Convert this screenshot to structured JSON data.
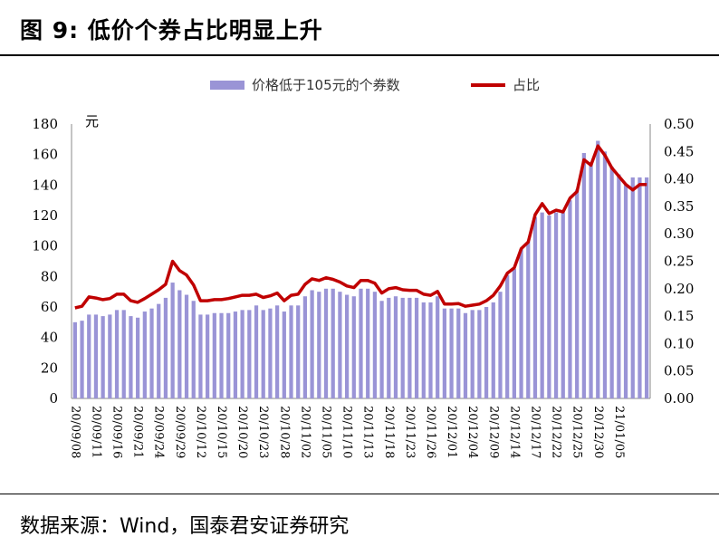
{
  "title": "图 9:  低价个券占比明显上升",
  "source": "数据来源：Wind，国泰君安证券研究",
  "colors": {
    "bar": "#9a94d6",
    "line": "#c00000"
  },
  "chart_data": {
    "type": "bar",
    "left_axis_unit": "元",
    "ylim_left": [
      0,
      180
    ],
    "yticks_left": [
      0,
      20,
      40,
      60,
      80,
      100,
      120,
      140,
      160,
      180
    ],
    "ylim_right": [
      0,
      0.5
    ],
    "yticks_right": [
      "0.00",
      "0.05",
      "0.10",
      "0.15",
      "0.20",
      "0.25",
      "0.30",
      "0.35",
      "0.40",
      "0.45",
      "0.50"
    ],
    "x_tick_labels": [
      "20/09/08",
      "20/09/11",
      "20/09/16",
      "20/09/21",
      "20/09/24",
      "20/09/29",
      "20/10/12",
      "20/10/15",
      "20/10/20",
      "20/10/23",
      "20/10/28",
      "20/11/02",
      "20/11/05",
      "20/11/10",
      "20/11/13",
      "20/11/18",
      "20/11/23",
      "20/11/26",
      "20/12/01",
      "20/12/04",
      "20/12/09",
      "20/12/14",
      "20/12/17",
      "20/12/22",
      "20/12/25",
      "20/12/30",
      "21/01/05"
    ],
    "x_tick_every": 3,
    "legend_position": "top",
    "series": [
      {
        "name": "价格低于105元的个券数",
        "type": "bar",
        "axis": "left",
        "values": [
          50,
          51,
          55,
          55,
          54,
          55,
          58,
          58,
          54,
          53,
          57,
          59,
          62,
          66,
          76,
          71,
          68,
          64,
          55,
          55,
          56,
          56,
          56,
          57,
          58,
          58,
          61,
          58,
          59,
          61,
          57,
          61,
          61,
          67,
          71,
          70,
          72,
          72,
          70,
          68,
          67,
          72,
          72,
          70,
          64,
          66,
          67,
          66,
          66,
          66,
          63,
          63,
          67,
          59,
          59,
          59,
          56,
          58,
          58,
          60,
          63,
          70,
          81,
          85,
          98,
          103,
          119,
          122,
          120,
          122,
          122,
          130,
          137,
          161,
          155,
          169,
          162,
          152,
          147,
          140,
          145,
          145,
          145
        ]
      },
      {
        "name": "占比",
        "type": "line",
        "axis": "right",
        "values": [
          0.165,
          0.168,
          0.185,
          0.183,
          0.18,
          0.182,
          0.19,
          0.19,
          0.178,
          0.175,
          0.182,
          0.19,
          0.198,
          0.208,
          0.25,
          0.233,
          0.225,
          0.207,
          0.178,
          0.178,
          0.18,
          0.18,
          0.182,
          0.185,
          0.188,
          0.188,
          0.19,
          0.184,
          0.187,
          0.192,
          0.178,
          0.188,
          0.19,
          0.208,
          0.218,
          0.215,
          0.22,
          0.217,
          0.212,
          0.205,
          0.202,
          0.215,
          0.215,
          0.21,
          0.192,
          0.2,
          0.202,
          0.198,
          0.197,
          0.197,
          0.19,
          0.188,
          0.195,
          0.172,
          0.172,
          0.173,
          0.168,
          0.17,
          0.172,
          0.178,
          0.188,
          0.205,
          0.228,
          0.238,
          0.273,
          0.285,
          0.335,
          0.355,
          0.337,
          0.343,
          0.34,
          0.365,
          0.377,
          0.435,
          0.425,
          0.46,
          0.443,
          0.42,
          0.405,
          0.39,
          0.38,
          0.39,
          0.39
        ]
      }
    ]
  }
}
